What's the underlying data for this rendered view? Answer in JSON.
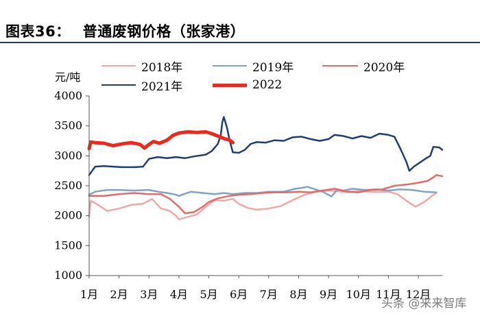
{
  "header": {
    "figure_no": "图表36：",
    "title": "普通废钢价格（张家港）"
  },
  "watermark": "头条 @来来智库",
  "colors": {
    "header_rule": "#1a3c7a",
    "s2018": "#f2a6a6",
    "s2019": "#7fa3c7",
    "s2020": "#e46a6a",
    "s2021": "#1f3d73",
    "s2022": "#e82a1f"
  },
  "chart_data": {
    "type": "line",
    "ylabel": "元/吨",
    "ylim": [
      1000,
      4000
    ],
    "yticks": [
      "1000",
      "1500",
      "2000",
      "2500",
      "3000",
      "3500",
      "4000"
    ],
    "xlim": [
      1,
      12.8
    ],
    "xticks": [
      "1月",
      "2月",
      "3月",
      "4月",
      "5月",
      "6月",
      "7月",
      "8月",
      "9月",
      "10月",
      "11月",
      "12月"
    ],
    "grid": false,
    "legend_position": "top",
    "series": [
      {
        "name": "2018年",
        "color_key": "s2018",
        "width": 2.5,
        "points": [
          [
            1.0,
            1980
          ],
          [
            1.05,
            2250
          ],
          [
            1.3,
            2180
          ],
          [
            1.6,
            2080
          ],
          [
            2.0,
            2120
          ],
          [
            2.4,
            2180
          ],
          [
            2.8,
            2200
          ],
          [
            3.1,
            2280
          ],
          [
            3.4,
            2120
          ],
          [
            3.7,
            2080
          ],
          [
            3.9,
            2000
          ],
          [
            4.0,
            1940
          ],
          [
            4.3,
            1980
          ],
          [
            4.6,
            2020
          ],
          [
            4.9,
            2150
          ],
          [
            5.2,
            2260
          ],
          [
            5.5,
            2250
          ],
          [
            5.8,
            2280
          ],
          [
            6.0,
            2200
          ],
          [
            6.3,
            2130
          ],
          [
            6.6,
            2100
          ],
          [
            7.0,
            2120
          ],
          [
            7.4,
            2160
          ],
          [
            7.8,
            2260
          ],
          [
            8.2,
            2350
          ],
          [
            8.6,
            2400
          ],
          [
            9.0,
            2420
          ],
          [
            9.5,
            2400
          ],
          [
            10.0,
            2410
          ],
          [
            10.5,
            2400
          ],
          [
            11.0,
            2400
          ],
          [
            11.3,
            2360
          ],
          [
            11.6,
            2250
          ],
          [
            11.9,
            2150
          ],
          [
            12.2,
            2230
          ],
          [
            12.5,
            2350
          ],
          [
            12.6,
            2380
          ]
        ]
      },
      {
        "name": "2019年",
        "color_key": "s2019",
        "width": 2.5,
        "points": [
          [
            1.0,
            2350
          ],
          [
            1.2,
            2400
          ],
          [
            1.6,
            2430
          ],
          [
            2.0,
            2430
          ],
          [
            2.5,
            2420
          ],
          [
            3.0,
            2430
          ],
          [
            3.3,
            2400
          ],
          [
            3.6,
            2380
          ],
          [
            3.9,
            2350
          ],
          [
            4.0,
            2330
          ],
          [
            4.4,
            2400
          ],
          [
            4.8,
            2380
          ],
          [
            5.2,
            2360
          ],
          [
            5.5,
            2380
          ],
          [
            5.8,
            2360
          ],
          [
            6.2,
            2380
          ],
          [
            6.6,
            2380
          ],
          [
            7.0,
            2400
          ],
          [
            7.5,
            2400
          ],
          [
            7.9,
            2450
          ],
          [
            8.3,
            2480
          ],
          [
            8.5,
            2450
          ],
          [
            8.8,
            2400
          ],
          [
            9.1,
            2320
          ],
          [
            9.3,
            2440
          ],
          [
            9.5,
            2420
          ],
          [
            9.8,
            2450
          ],
          [
            10.2,
            2430
          ],
          [
            10.6,
            2440
          ],
          [
            11.0,
            2420
          ],
          [
            11.4,
            2440
          ],
          [
            11.8,
            2430
          ],
          [
            12.2,
            2400
          ],
          [
            12.6,
            2390
          ]
        ]
      },
      {
        "name": "2020年",
        "color_key": "s2020",
        "width": 2.5,
        "points": [
          [
            1.0,
            2330
          ],
          [
            1.5,
            2330
          ],
          [
            2.0,
            2360
          ],
          [
            2.5,
            2380
          ],
          [
            3.0,
            2360
          ],
          [
            3.4,
            2360
          ],
          [
            3.7,
            2280
          ],
          [
            4.0,
            2150
          ],
          [
            4.2,
            2040
          ],
          [
            4.5,
            2060
          ],
          [
            4.8,
            2150
          ],
          [
            5.0,
            2230
          ],
          [
            5.3,
            2290
          ],
          [
            5.7,
            2330
          ],
          [
            6.0,
            2350
          ],
          [
            6.4,
            2360
          ],
          [
            6.8,
            2380
          ],
          [
            7.2,
            2390
          ],
          [
            7.6,
            2390
          ],
          [
            8.0,
            2400
          ],
          [
            8.4,
            2390
          ],
          [
            8.8,
            2420
          ],
          [
            9.2,
            2450
          ],
          [
            9.6,
            2400
          ],
          [
            10.0,
            2390
          ],
          [
            10.4,
            2430
          ],
          [
            10.8,
            2440
          ],
          [
            11.2,
            2500
          ],
          [
            11.6,
            2520
          ],
          [
            12.0,
            2550
          ],
          [
            12.3,
            2580
          ],
          [
            12.5,
            2640
          ],
          [
            12.6,
            2680
          ],
          [
            12.8,
            2660
          ]
        ]
      },
      {
        "name": "2021年",
        "color_key": "s2021",
        "width": 2.5,
        "points": [
          [
            1.0,
            2680
          ],
          [
            1.1,
            2750
          ],
          [
            1.2,
            2820
          ],
          [
            1.5,
            2830
          ],
          [
            1.8,
            2820
          ],
          [
            2.1,
            2810
          ],
          [
            2.5,
            2810
          ],
          [
            2.8,
            2820
          ],
          [
            3.0,
            2950
          ],
          [
            3.3,
            2980
          ],
          [
            3.6,
            2960
          ],
          [
            3.9,
            2980
          ],
          [
            4.2,
            2960
          ],
          [
            4.5,
            2990
          ],
          [
            4.9,
            3020
          ],
          [
            5.1,
            3080
          ],
          [
            5.3,
            3200
          ],
          [
            5.4,
            3350
          ],
          [
            5.45,
            3560
          ],
          [
            5.5,
            3650
          ],
          [
            5.6,
            3480
          ],
          [
            5.7,
            3250
          ],
          [
            5.8,
            3060
          ],
          [
            6.0,
            3050
          ],
          [
            6.2,
            3100
          ],
          [
            6.4,
            3200
          ],
          [
            6.6,
            3230
          ],
          [
            6.9,
            3220
          ],
          [
            7.2,
            3260
          ],
          [
            7.5,
            3250
          ],
          [
            7.8,
            3310
          ],
          [
            8.1,
            3320
          ],
          [
            8.4,
            3280
          ],
          [
            8.7,
            3250
          ],
          [
            9.0,
            3280
          ],
          [
            9.2,
            3350
          ],
          [
            9.5,
            3330
          ],
          [
            9.8,
            3290
          ],
          [
            10.1,
            3330
          ],
          [
            10.4,
            3300
          ],
          [
            10.7,
            3370
          ],
          [
            11.0,
            3350
          ],
          [
            11.2,
            3320
          ],
          [
            11.4,
            3120
          ],
          [
            11.6,
            2900
          ],
          [
            11.7,
            2750
          ],
          [
            11.85,
            2820
          ],
          [
            12.0,
            2870
          ],
          [
            12.2,
            2940
          ],
          [
            12.4,
            3000
          ],
          [
            12.5,
            3150
          ],
          [
            12.7,
            3140
          ],
          [
            12.8,
            3100
          ]
        ]
      },
      {
        "name": "2022",
        "color_key": "s2022",
        "width": 5,
        "points": [
          [
            1.0,
            3120
          ],
          [
            1.05,
            3230
          ],
          [
            1.2,
            3220
          ],
          [
            1.5,
            3210
          ],
          [
            1.8,
            3170
          ],
          [
            2.1,
            3200
          ],
          [
            2.4,
            3220
          ],
          [
            2.7,
            3190
          ],
          [
            2.85,
            3130
          ],
          [
            3.0,
            3190
          ],
          [
            3.15,
            3240
          ],
          [
            3.35,
            3210
          ],
          [
            3.6,
            3260
          ],
          [
            3.8,
            3340
          ],
          [
            4.0,
            3380
          ],
          [
            4.3,
            3400
          ],
          [
            4.6,
            3390
          ],
          [
            4.9,
            3400
          ],
          [
            5.1,
            3370
          ],
          [
            5.3,
            3330
          ],
          [
            5.5,
            3290
          ],
          [
            5.7,
            3260
          ],
          [
            5.8,
            3220
          ]
        ]
      }
    ]
  }
}
